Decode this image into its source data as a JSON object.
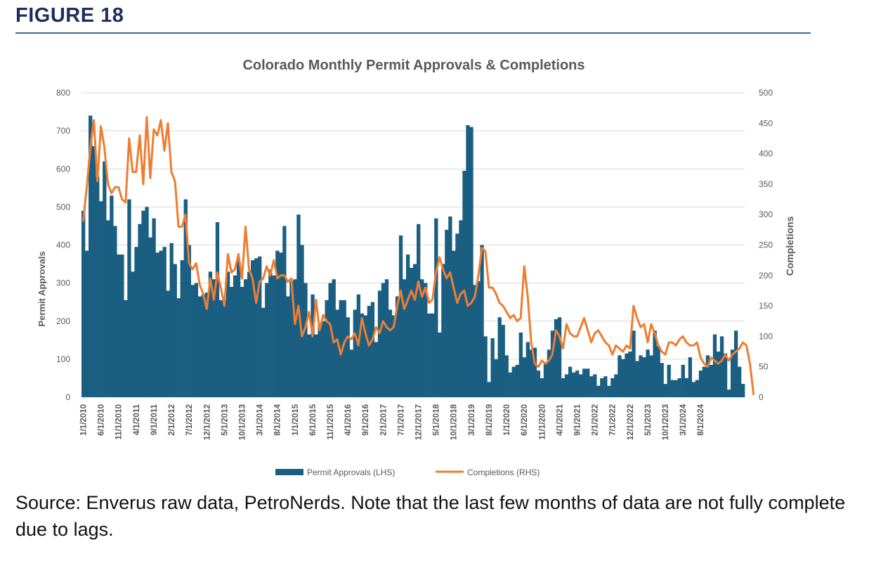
{
  "figure_label": "FIGURE 18",
  "caption": "Source: Enverus raw data, PetroNerds. Note that the last few months of data are not fully complete due to lags.",
  "colors": {
    "bars": "#1a5f82",
    "line": "#ee7d31",
    "figure_label": "#1c2f5a",
    "rule": "#3d6a9e",
    "grid": "#d9d9d9",
    "axis_text": "#595959"
  },
  "chart_data": {
    "type": "bar+line",
    "title": "Colorado Monthly Permit Approvals & Completions",
    "ylabel": "Permit Approvals",
    "y2label": "Completions",
    "ylim": [
      0,
      800
    ],
    "y2lim": [
      0,
      500
    ],
    "yticks": [
      0,
      100,
      200,
      300,
      400,
      500,
      600,
      700,
      800
    ],
    "y2ticks": [
      0,
      50,
      100,
      150,
      200,
      250,
      300,
      350,
      400,
      450,
      500
    ],
    "grid": true,
    "legend_position": "bottom",
    "x_start": "2010-01",
    "x_tick_labels": [
      "1/1/2010",
      "6/1/2010",
      "11/1/2010",
      "4/1/2011",
      "9/1/2011",
      "2/1/2012",
      "7/1/2012",
      "12/1/2012",
      "5/1/2013",
      "10/1/2013",
      "3/1/2014",
      "8/1/2014",
      "1/1/2015",
      "6/1/2015",
      "11/1/2015",
      "4/1/2016",
      "9/1/2016",
      "2/1/2017",
      "7/1/2017",
      "12/1/2017",
      "5/1/2018",
      "10/1/2018",
      "3/1/2019",
      "8/1/2019",
      "1/1/2020",
      "6/1/2020",
      "11/1/2020",
      "4/1/2021",
      "9/1/2021",
      "2/1/2022",
      "7/1/2022",
      "12/1/2022",
      "5/1/2023",
      "10/1/2023",
      "3/1/2024",
      "8/1/2024"
    ],
    "series": [
      {
        "name": "Permit Approvals (LHS)",
        "kind": "bar",
        "axis": "left",
        "values": [
          490,
          385,
          740,
          660,
          580,
          515,
          620,
          465,
          530,
          450,
          375,
          375,
          255,
          520,
          330,
          395,
          455,
          490,
          500,
          420,
          470,
          380,
          385,
          395,
          280,
          405,
          350,
          260,
          360,
          520,
          400,
          295,
          300,
          265,
          270,
          275,
          330,
          310,
          460,
          255,
          255,
          330,
          290,
          320,
          360,
          290,
          310,
          330,
          360,
          365,
          370,
          235,
          300,
          335,
          320,
          385,
          380,
          450,
          265,
          305,
          310,
          480,
          400,
          300,
          165,
          270,
          165,
          195,
          200,
          255,
          300,
          310,
          230,
          255,
          255,
          210,
          125,
          230,
          270,
          220,
          215,
          240,
          250,
          145,
          280,
          300,
          310,
          230,
          215,
          265,
          425,
          310,
          375,
          340,
          350,
          455,
          310,
          300,
          220,
          220,
          470,
          170,
          350,
          440,
          475,
          385,
          430,
          465,
          595,
          715,
          710,
          295,
          305,
          400,
          160,
          40,
          155,
          100,
          210,
          190,
          110,
          65,
          80,
          85,
          170,
          105,
          145,
          125,
          130,
          70,
          50,
          90,
          125,
          175,
          205,
          210,
          50,
          60,
          80,
          65,
          70,
          60,
          75,
          75,
          55,
          60,
          30,
          50,
          55,
          30,
          50,
          60,
          110,
          100,
          115,
          120,
          175,
          95,
          110,
          105,
          125,
          110,
          175,
          135,
          90,
          35,
          85,
          45,
          45,
          50,
          85,
          50,
          105,
          40,
          45,
          70,
          80,
          110,
          85,
          165,
          120,
          160,
          115,
          20,
          125,
          175,
          80,
          35
        ]
      },
      {
        "name": "Completions (RHS)",
        "kind": "line",
        "axis": "right",
        "values": [
          290,
          345,
          410,
          455,
          355,
          445,
          410,
          350,
          335,
          345,
          345,
          325,
          320,
          425,
          370,
          370,
          430,
          350,
          460,
          360,
          440,
          430,
          455,
          405,
          450,
          370,
          355,
          280,
          280,
          300,
          220,
          210,
          220,
          185,
          170,
          145,
          195,
          160,
          205,
          180,
          150,
          235,
          205,
          210,
          235,
          195,
          280,
          210,
          195,
          155,
          190,
          195,
          215,
          200,
          225,
          195,
          200,
          200,
          190,
          195,
          120,
          150,
          100,
          115,
          140,
          100,
          160,
          110,
          135,
          125,
          120,
          90,
          95,
          70,
          90,
          100,
          95,
          105,
          85,
          130,
          105,
          85,
          95,
          115,
          105,
          125,
          115,
          110,
          115,
          150,
          175,
          145,
          160,
          175,
          160,
          190,
          165,
          180,
          155,
          160,
          205,
          230,
          210,
          195,
          205,
          180,
          155,
          170,
          175,
          150,
          155,
          165,
          200,
          245,
          240,
          180,
          180,
          170,
          155,
          150,
          140,
          130,
          135,
          125,
          130,
          215,
          165,
          90,
          55,
          50,
          60,
          55,
          60,
          70,
          110,
          100,
          80,
          120,
          105,
          100,
          100,
          115,
          130,
          110,
          90,
          105,
          110,
          100,
          90,
          85,
          70,
          85,
          80,
          75,
          85,
          80,
          150,
          130,
          115,
          120,
          90,
          120,
          105,
          85,
          75,
          70,
          90,
          90,
          85,
          95,
          100,
          90,
          85,
          85,
          90,
          65,
          55,
          50,
          65,
          60,
          55,
          60,
          70,
          60,
          70,
          75,
          80,
          90,
          85,
          55,
          5
        ]
      }
    ]
  }
}
